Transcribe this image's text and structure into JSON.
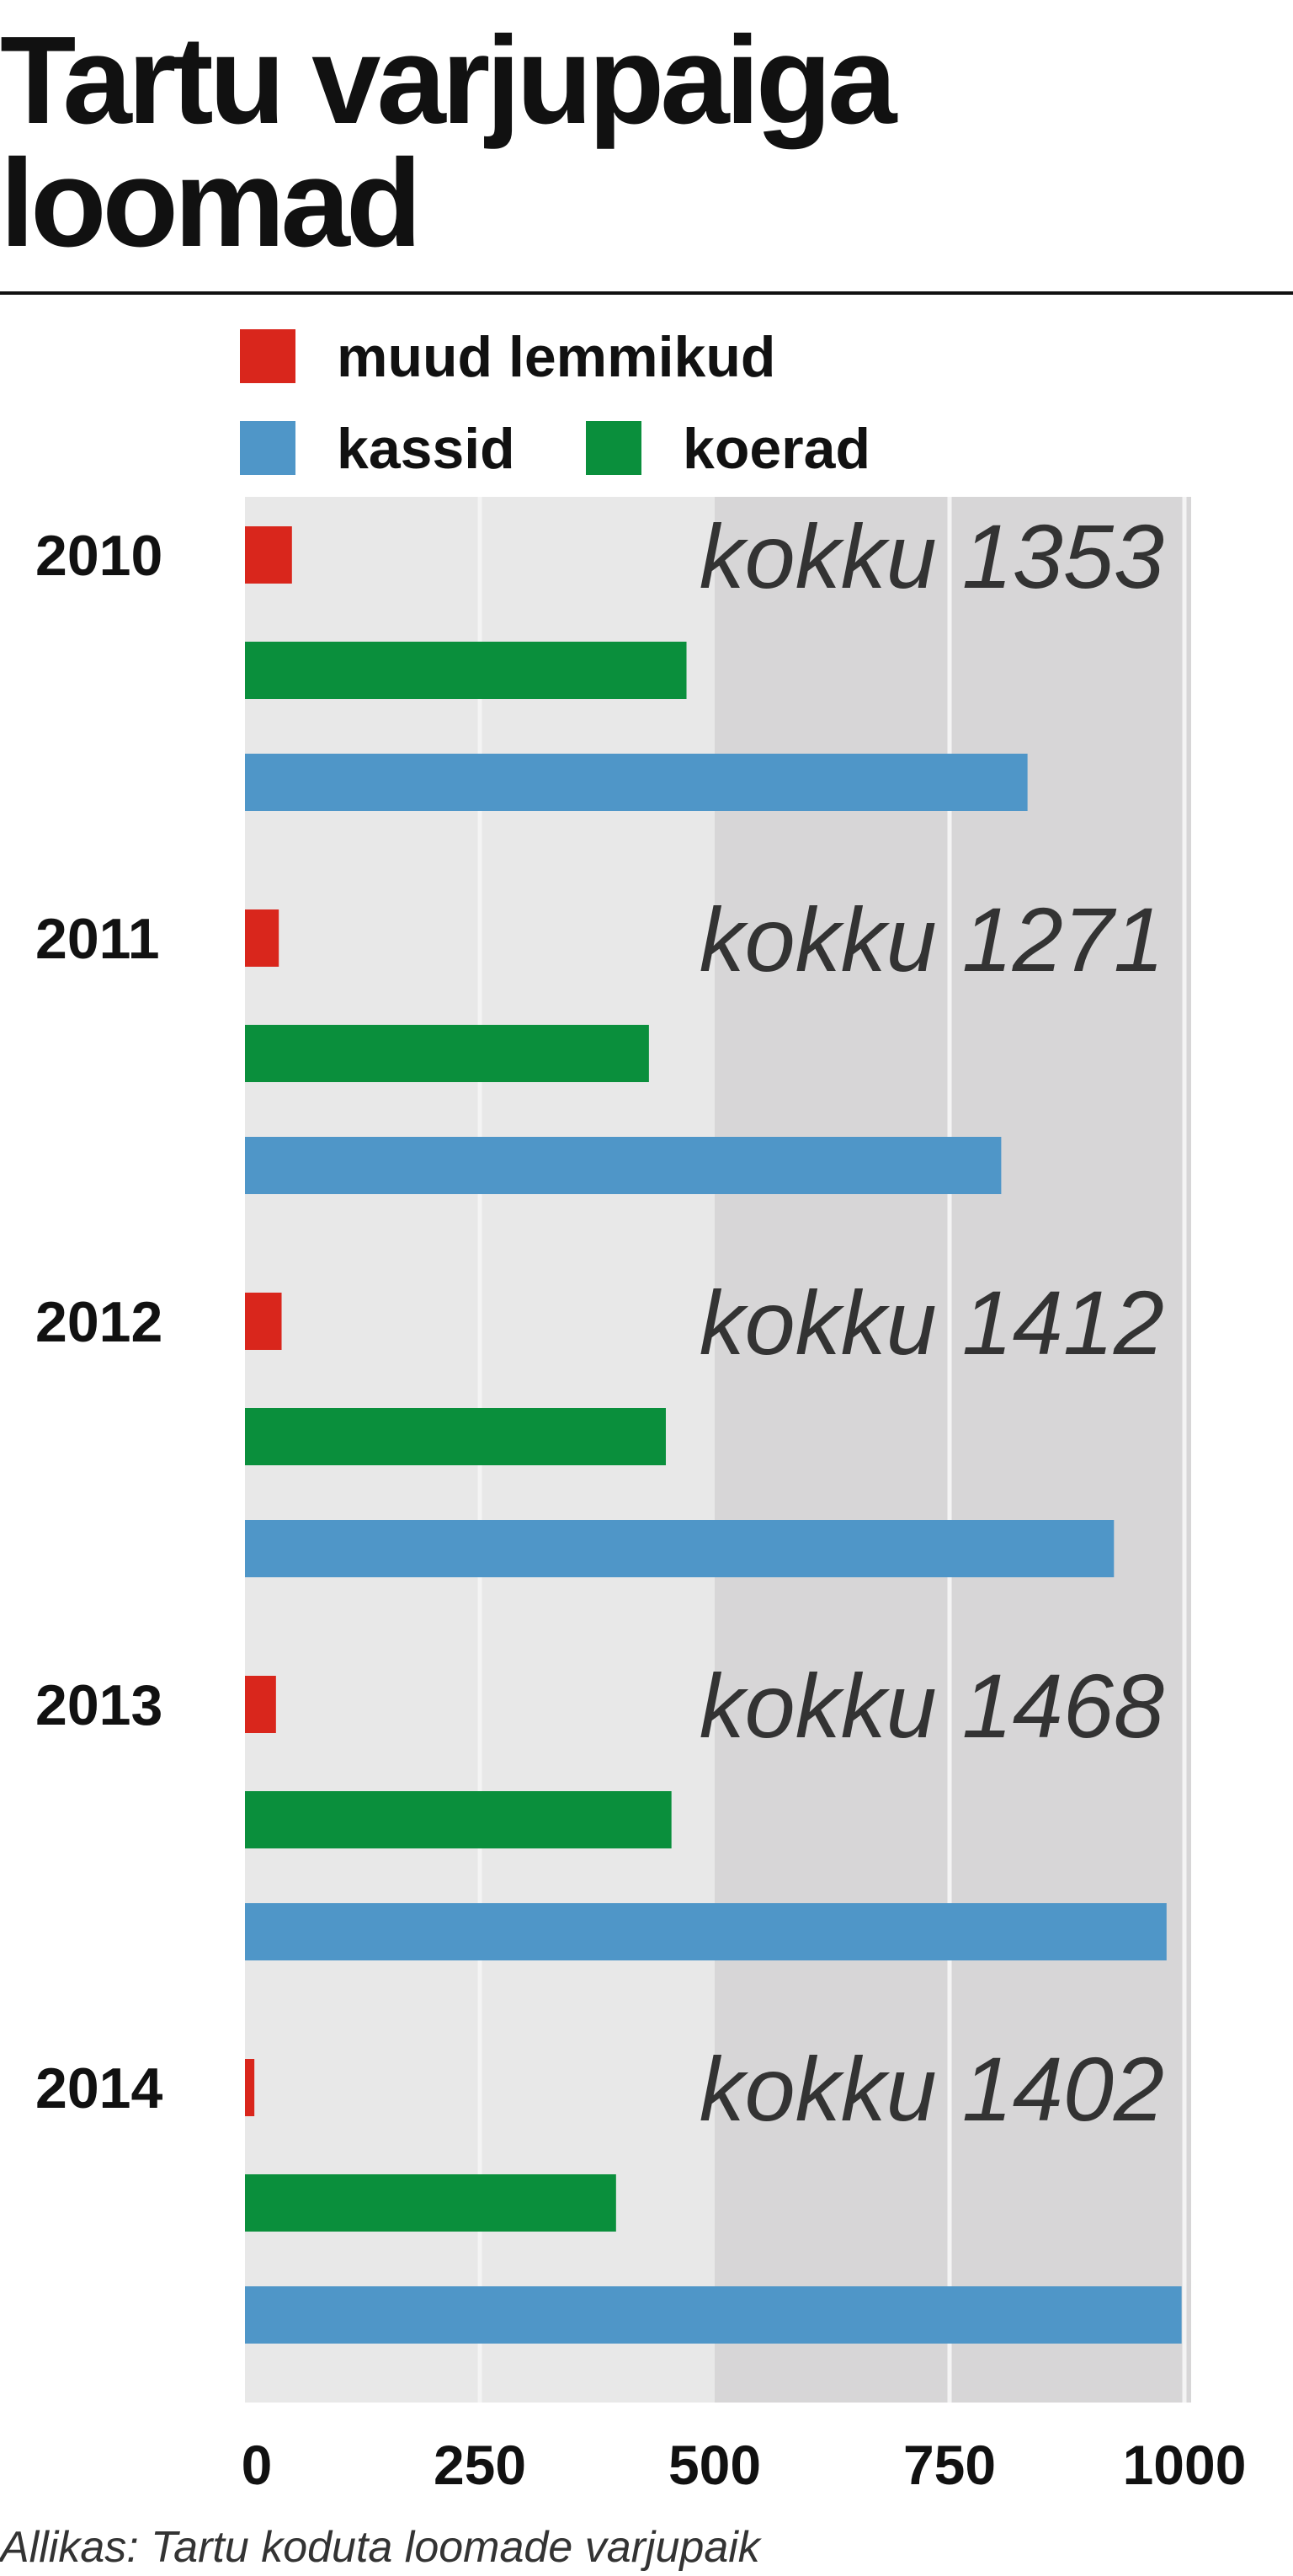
{
  "chart_data": {
    "type": "bar",
    "orientation": "horizontal",
    "title": "Tartu varjupaiga loomad",
    "source": "Allikas: Tartu koduta loomade varjupaik",
    "categories": [
      "2010",
      "2011",
      "2012",
      "2013",
      "2014"
    ],
    "series": [
      {
        "name": "muud lemmikud",
        "color": "#d9261c",
        "values": [
          50,
          36,
          39,
          33,
          10
        ]
      },
      {
        "name": "koerad",
        "color": "#0a8f3c",
        "values": [
          470,
          430,
          448,
          454,
          395
        ]
      },
      {
        "name": "kassid",
        "color": "#4f96c8",
        "values": [
          833,
          805,
          925,
          981,
          997
        ]
      }
    ],
    "total_label": "kokku",
    "totals": [
      1353,
      1271,
      1412,
      1468,
      1402
    ],
    "xlim": [
      0,
      1000
    ],
    "xticks": [
      0,
      250,
      500,
      750,
      1000
    ],
    "grid": true
  }
}
